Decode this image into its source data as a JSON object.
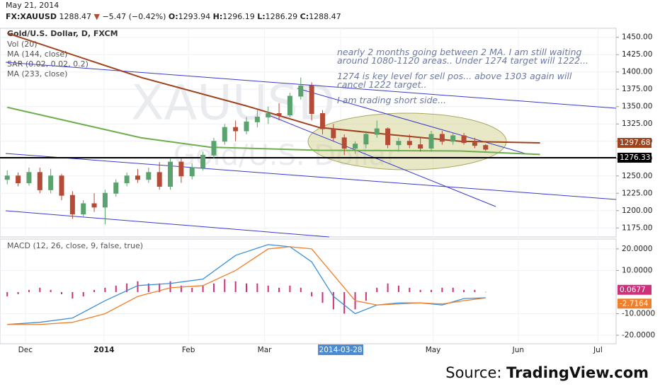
{
  "header": {
    "date": "May 21, 2014",
    "symbol": "FX:XAUUSD",
    "last": "1288.47",
    "change": "−5.47 (−0.42%)",
    "open_label": "O:",
    "open": "1293.94",
    "high_label": "H:",
    "high": "1296.19",
    "low_label": "L:",
    "low": "1286.29",
    "close_label": "C:",
    "close": "1288.47"
  },
  "source": {
    "label": "Source:",
    "name": "TradingView.com"
  },
  "chart_data": [
    {
      "type": "candlestick",
      "title": "Gold/U.S. Dollar, D, FXCM",
      "indicators": [
        "Vol (20)",
        "SAR (0.02, 0.02, 0.2)"
      ],
      "watermark": "XAUUSD",
      "watermark_sub": "Gold/U.S. Dollar",
      "annotations": [
        "nearly 2 months going between 2 MA. I am still waiting around 1080-1120 areas.. Under 1274 target will 1222...",
        "1274 is key level for sell pos... above 1303 again will cancel 1222 target..",
        "I am trading short side..."
      ],
      "up_color": "#5ba36e",
      "down_color": "#b54a36",
      "x": [
        2,
        5,
        8,
        11,
        14,
        17,
        20,
        23,
        26,
        29,
        32,
        35,
        38,
        41,
        44,
        47,
        50,
        53,
        56,
        59,
        62,
        65,
        68,
        71,
        74,
        77,
        80,
        83,
        86,
        89,
        92,
        95,
        98,
        101,
        104,
        107,
        110,
        113,
        116,
        119,
        122,
        125,
        128,
        131,
        134
      ],
      "open": [
        1245,
        1250,
        1240,
        1255,
        1230,
        1250,
        1222,
        1195,
        1210,
        1205,
        1225,
        1240,
        1250,
        1245,
        1255,
        1235,
        1270,
        1250,
        1262,
        1280,
        1300,
        1320,
        1315,
        1328,
        1335,
        1340,
        1338,
        1365,
        1380,
        1340,
        1318,
        1305,
        1290,
        1296,
        1310,
        1318,
        1295,
        1300,
        1295,
        1290,
        1310,
        1300,
        1308,
        1298,
        1294
      ],
      "high": [
        1258,
        1255,
        1262,
        1262,
        1260,
        1253,
        1228,
        1215,
        1225,
        1230,
        1245,
        1255,
        1260,
        1262,
        1270,
        1275,
        1275,
        1268,
        1285,
        1305,
        1325,
        1330,
        1335,
        1345,
        1350,
        1355,
        1370,
        1392,
        1385,
        1345,
        1325,
        1310,
        1300,
        1315,
        1330,
        1320,
        1305,
        1310,
        1305,
        1315,
        1315,
        1312,
        1312,
        1305,
        1296
      ],
      "low": [
        1238,
        1235,
        1236,
        1225,
        1225,
        1215,
        1188,
        1190,
        1198,
        1180,
        1220,
        1235,
        1240,
        1240,
        1230,
        1230,
        1240,
        1245,
        1258,
        1275,
        1295,
        1300,
        1310,
        1320,
        1325,
        1330,
        1335,
        1360,
        1330,
        1310,
        1300,
        1280,
        1282,
        1290,
        1305,
        1290,
        1285,
        1290,
        1285,
        1285,
        1295,
        1295,
        1295,
        1290,
        1286
      ],
      "close": [
        1250,
        1240,
        1255,
        1230,
        1250,
        1222,
        1195,
        1210,
        1205,
        1225,
        1240,
        1250,
        1245,
        1255,
        1235,
        1270,
        1250,
        1262,
        1280,
        1300,
        1320,
        1315,
        1328,
        1335,
        1340,
        1338,
        1365,
        1380,
        1340,
        1318,
        1305,
        1290,
        1296,
        1310,
        1318,
        1295,
        1300,
        1295,
        1290,
        1310,
        1300,
        1308,
        1298,
        1294,
        1288.47
      ],
      "lines": [
        {
          "name": "MA (144, close)",
          "color": "#a0421c",
          "x": [
            2,
            39,
            68,
            88,
            107,
            127,
            149
          ],
          "values": [
            1456,
            1392,
            1351,
            1320,
            1310,
            1300,
            1297.68
          ]
        },
        {
          "name": "MA (233, close)",
          "color": "#6fae4f",
          "x": [
            2,
            39,
            58,
            88,
            127,
            149
          ],
          "values": [
            1349,
            1305,
            1291.5,
            1287,
            1286,
            1281
          ]
        }
      ],
      "hline": 1276.33,
      "xlim": [
        0,
        170
      ],
      "ylim": [
        1162,
        1463
      ],
      "xticks": [
        {
          "value": 7,
          "label": "Dec"
        },
        {
          "value": 28.7,
          "label": "2014"
        },
        {
          "value": 52,
          "label": "Feb"
        },
        {
          "value": 73,
          "label": "Mar"
        },
        {
          "value": 94,
          "label": "2014-03-28"
        },
        {
          "value": 119.5,
          "label": "May"
        },
        {
          "value": 143,
          "label": "Jun"
        },
        {
          "value": 165,
          "label": "Jul"
        }
      ],
      "yticks": [
        {
          "value": 1175,
          "label": "1175.00"
        },
        {
          "value": 1200,
          "label": "1200.00"
        },
        {
          "value": 1225,
          "label": "1225.00"
        },
        {
          "value": 1250,
          "label": "1250.00"
        },
        {
          "value": 1275,
          "label": "1275.00"
        },
        {
          "value": 1300,
          "label": "1300.00"
        },
        {
          "value": 1325,
          "label": "1325.00"
        },
        {
          "value": 1350,
          "label": "1350.00"
        },
        {
          "value": 1375,
          "label": "1375.00"
        },
        {
          "value": 1400,
          "label": "1400.00"
        },
        {
          "value": 1425,
          "label": "1425.00"
        },
        {
          "value": 1450,
          "label": "1450.00"
        }
      ],
      "grid": true
    },
    {
      "type": "macd",
      "title": "MACD (12, 26, close, 9, false, true)",
      "histogram": {
        "color": "#d0307a",
        "x": [
          2,
          5,
          8,
          11,
          14,
          17,
          20,
          23,
          26,
          29,
          32,
          35,
          38,
          41,
          44,
          47,
          50,
          53,
          56,
          59,
          62,
          65,
          68,
          71,
          74,
          77,
          80,
          83,
          86,
          89,
          92,
          95,
          98,
          101,
          104,
          107,
          110,
          113,
          116,
          119,
          122,
          125,
          128,
          131,
          134
        ],
        "values": [
          -2,
          -1,
          1,
          2,
          1,
          -1,
          -3,
          -2,
          1,
          2,
          3,
          4,
          5,
          4,
          4,
          5,
          3,
          2,
          3,
          4,
          6,
          5,
          4,
          4,
          3,
          2,
          3,
          2,
          -2,
          -5,
          -8,
          -10,
          -8,
          -4,
          2,
          4,
          3,
          2,
          1,
          1,
          2,
          2,
          1,
          1,
          0.0677
        ]
      },
      "macd_line": {
        "color": "#3b8fd9",
        "x": [
          2,
          11,
          20,
          29,
          38,
          47,
          56,
          65,
          74,
          80,
          86,
          92,
          98,
          104,
          110,
          116,
          122,
          128,
          134
        ],
        "values": [
          -15,
          -14,
          -12,
          -4,
          3,
          4,
          6,
          17,
          22,
          21,
          14,
          -2,
          -10,
          -6,
          -5,
          -5,
          -6,
          -3,
          -2.65
        ]
      },
      "signal_line": {
        "color": "#f07f2a",
        "x": [
          2,
          11,
          20,
          29,
          38,
          47,
          56,
          65,
          74,
          80,
          86,
          92,
          98,
          104,
          110,
          116,
          122,
          128,
          134
        ],
        "values": [
          -15,
          -15,
          -14,
          -10,
          -2,
          2,
          3,
          10,
          20,
          21,
          20,
          8,
          -4,
          -6,
          -5.5,
          -5,
          -5.5,
          -4,
          -2.7164
        ]
      },
      "ylim": [
        -23.6,
        23.9
      ],
      "yticks": [
        {
          "value": -20,
          "label": "-20.0000"
        },
        {
          "value": -10,
          "label": "-10.0000"
        },
        {
          "value": 10,
          "label": "10.0000"
        },
        {
          "value": 20,
          "label": "20.0000"
        }
      ],
      "grid": true
    }
  ]
}
